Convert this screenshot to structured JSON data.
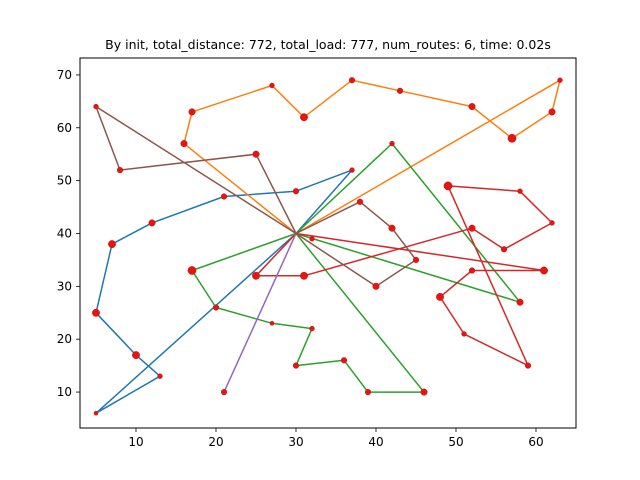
{
  "chart_data": {
    "type": "line",
    "title": "By init, total_distance: 772, total_load: 777, num_routes: 6, time: 0.02s",
    "xlabel": "",
    "ylabel": "",
    "xlim": [
      3.0,
      65.0
    ],
    "ylim": [
      3.2,
      73.2
    ],
    "xticks": [
      10,
      20,
      30,
      40,
      50,
      60
    ],
    "yticks": [
      10,
      20,
      30,
      40,
      50,
      60,
      70
    ],
    "grid": false,
    "depot": [
      30,
      40
    ],
    "series": [
      {
        "color": "#1f77b4",
        "points": [
          [
            30,
            40
          ],
          [
            5,
            6
          ],
          [
            13,
            13
          ],
          [
            10,
            17
          ],
          [
            5,
            25
          ],
          [
            7,
            38
          ],
          [
            12,
            42
          ],
          [
            21,
            47
          ],
          [
            30,
            48
          ],
          [
            37,
            52
          ],
          [
            30,
            40
          ]
        ]
      },
      {
        "color": "#ff7f0e",
        "points": [
          [
            30,
            40
          ],
          [
            16,
            57
          ],
          [
            17,
            63
          ],
          [
            27,
            68
          ],
          [
            31,
            62
          ],
          [
            37,
            69
          ],
          [
            43,
            67
          ],
          [
            52,
            64
          ],
          [
            57,
            58
          ],
          [
            62,
            63
          ],
          [
            63,
            69
          ],
          [
            30,
            40
          ]
        ]
      },
      {
        "color": "#2ca02c",
        "points": [
          [
            30,
            40
          ],
          [
            17,
            33
          ],
          [
            20,
            26
          ],
          [
            27,
            23
          ],
          [
            32,
            22
          ],
          [
            30,
            15
          ],
          [
            36,
            16
          ],
          [
            39,
            10
          ],
          [
            46,
            10
          ],
          [
            30,
            40
          ],
          [
            42,
            57
          ],
          [
            58,
            27
          ],
          [
            30,
            40
          ]
        ]
      },
      {
        "color": "#d62728",
        "points": [
          [
            30,
            40
          ],
          [
            61,
            33
          ],
          [
            52,
            33
          ],
          [
            48,
            28
          ],
          [
            51,
            21
          ],
          [
            59,
            15
          ],
          [
            49,
            49
          ],
          [
            58,
            48
          ],
          [
            62,
            42
          ],
          [
            56,
            37
          ],
          [
            52,
            41
          ],
          [
            31,
            32
          ],
          [
            25,
            32
          ],
          [
            30,
            40
          ]
        ]
      },
      {
        "color": "#9467bd",
        "points": [
          [
            30,
            40
          ],
          [
            21,
            10
          ],
          [
            30,
            40
          ]
        ]
      },
      {
        "color": "#8c564b",
        "points": [
          [
            30,
            40
          ],
          [
            25,
            55
          ],
          [
            8,
            52
          ],
          [
            5,
            64
          ],
          [
            30,
            40
          ],
          [
            38,
            46
          ],
          [
            42,
            41
          ],
          [
            45,
            35
          ],
          [
            40,
            30
          ],
          [
            30,
            40
          ]
        ]
      }
    ],
    "customers": [
      {
        "x": 37,
        "y": 52,
        "size": 3
      },
      {
        "x": 49,
        "y": 49,
        "size": 7
      },
      {
        "x": 52,
        "y": 64,
        "size": 5
      },
      {
        "x": 20,
        "y": 26,
        "size": 4
      },
      {
        "x": 40,
        "y": 30,
        "size": 5
      },
      {
        "x": 21,
        "y": 47,
        "size": 4
      },
      {
        "x": 17,
        "y": 63,
        "size": 5
      },
      {
        "x": 31,
        "y": 62,
        "size": 6
      },
      {
        "x": 52,
        "y": 33,
        "size": 4
      },
      {
        "x": 51,
        "y": 21,
        "size": 3
      },
      {
        "x": 42,
        "y": 41,
        "size": 5
      },
      {
        "x": 31,
        "y": 32,
        "size": 6
      },
      {
        "x": 5,
        "y": 25,
        "size": 6
      },
      {
        "x": 12,
        "y": 42,
        "size": 5
      },
      {
        "x": 36,
        "y": 16,
        "size": 4
      },
      {
        "x": 52,
        "y": 41,
        "size": 5
      },
      {
        "x": 27,
        "y": 23,
        "size": 2
      },
      {
        "x": 17,
        "y": 33,
        "size": 7
      },
      {
        "x": 13,
        "y": 13,
        "size": 3
      },
      {
        "x": 57,
        "y": 58,
        "size": 7
      },
      {
        "x": 62,
        "y": 42,
        "size": 3
      },
      {
        "x": 42,
        "y": 57,
        "size": 3
      },
      {
        "x": 16,
        "y": 57,
        "size": 5
      },
      {
        "x": 8,
        "y": 52,
        "size": 4
      },
      {
        "x": 7,
        "y": 38,
        "size": 6
      },
      {
        "x": 27,
        "y": 68,
        "size": 3
      },
      {
        "x": 30,
        "y": 48,
        "size": 4
      },
      {
        "x": 43,
        "y": 67,
        "size": 4
      },
      {
        "x": 58,
        "y": 48,
        "size": 3
      },
      {
        "x": 58,
        "y": 27,
        "size": 5
      },
      {
        "x": 37,
        "y": 69,
        "size": 4
      },
      {
        "x": 38,
        "y": 46,
        "size": 4
      },
      {
        "x": 46,
        "y": 10,
        "size": 5
      },
      {
        "x": 61,
        "y": 33,
        "size": 6
      },
      {
        "x": 62,
        "y": 63,
        "size": 5
      },
      {
        "x": 63,
        "y": 69,
        "size": 3
      },
      {
        "x": 32,
        "y": 22,
        "size": 3
      },
      {
        "x": 45,
        "y": 35,
        "size": 4
      },
      {
        "x": 59,
        "y": 15,
        "size": 4
      },
      {
        "x": 5,
        "y": 6,
        "size": 2
      },
      {
        "x": 10,
        "y": 17,
        "size": 6
      },
      {
        "x": 21,
        "y": 10,
        "size": 4
      },
      {
        "x": 5,
        "y": 64,
        "size": 3
      },
      {
        "x": 30,
        "y": 15,
        "size": 4
      },
      {
        "x": 39,
        "y": 10,
        "size": 4
      },
      {
        "x": 32,
        "y": 39,
        "size": 3
      },
      {
        "x": 25,
        "y": 32,
        "size": 6
      },
      {
        "x": 25,
        "y": 55,
        "size": 5
      },
      {
        "x": 48,
        "y": 28,
        "size": 6
      },
      {
        "x": 56,
        "y": 37,
        "size": 4
      }
    ]
  }
}
